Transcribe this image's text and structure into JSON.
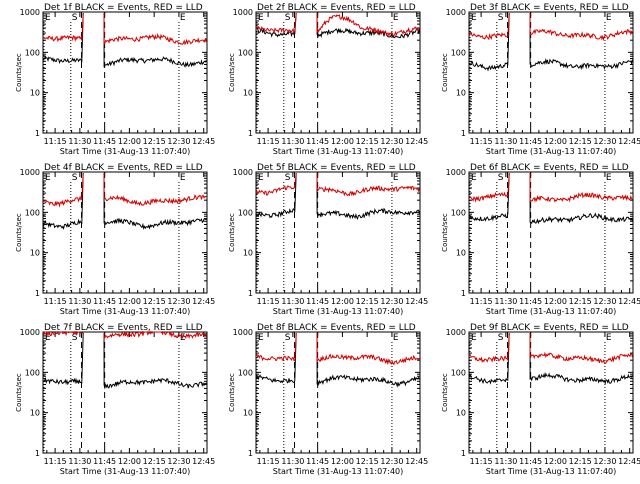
{
  "colors": {
    "background": "#ffffff",
    "axis": "#000000",
    "events": "#000000",
    "lld": "#d40000"
  },
  "chart_data": [
    {
      "title": "Det 1f BLACK = Events, RED = LLD",
      "type": "line",
      "xlabel": "Start Time (31-Aug-13 11:07:40)",
      "ylabel": "Counts/sec",
      "xticks": [
        "11:15",
        "11:30",
        "11:45",
        "12:00",
        "12:15",
        "12:30",
        "12:45"
      ],
      "yticks": [
        "1",
        "10",
        "100",
        "1000"
      ],
      "yscale": "log",
      "ylim": [
        1,
        1000
      ],
      "markers": [
        "E",
        "S",
        "E"
      ],
      "series": [
        {
          "name": "Events",
          "color": "#000000",
          "base": 60,
          "shape": "flat"
        },
        {
          "name": "LLD",
          "color": "#d40000",
          "base": 210,
          "shape": "flat"
        }
      ]
    },
    {
      "title": "Det 2f BLACK = Events, RED = LLD",
      "type": "line",
      "xlabel": "Start Time (31-Aug-13 11:07:40)",
      "ylabel": "Counts/sec",
      "xticks": [
        "11:15",
        "11:30",
        "11:45",
        "12:00",
        "12:15",
        "12:30",
        "12:45"
      ],
      "yticks": [
        "1",
        "10",
        "100",
        "1000"
      ],
      "yscale": "log",
      "ylim": [
        1,
        1000
      ],
      "markers": [
        "E",
        "S",
        "E"
      ],
      "series": [
        {
          "name": "Events",
          "color": "#000000",
          "base": 300,
          "shape": "flat"
        },
        {
          "name": "LLD",
          "color": "#d40000",
          "base": 360,
          "shape": "hump"
        }
      ]
    },
    {
      "title": "Det 3f BLACK = Events, RED = LLD",
      "type": "line",
      "xlabel": "Start Time (31-Aug-13 11:07:40)",
      "ylabel": "Counts/sec",
      "xticks": [
        "11:15",
        "11:30",
        "11:45",
        "12:00",
        "12:15",
        "12:30",
        "12:45"
      ],
      "yticks": [
        "1",
        "10",
        "100",
        "1000"
      ],
      "yscale": "log",
      "ylim": [
        1,
        1000
      ],
      "markers": [
        "E",
        "S",
        "E"
      ],
      "series": [
        {
          "name": "Events",
          "color": "#000000",
          "base": 50,
          "shape": "flat"
        },
        {
          "name": "LLD",
          "color": "#d40000",
          "base": 280,
          "shape": "flat"
        }
      ]
    },
    {
      "title": "Det 4f BLACK = Events, RED = LLD",
      "type": "line",
      "xlabel": "Start Time (31-Aug-13 11:07:40)",
      "ylabel": "Counts/sec",
      "xticks": [
        "11:15",
        "11:30",
        "11:45",
        "12:00",
        "12:15",
        "12:30",
        "12:45"
      ],
      "yticks": [
        "1",
        "10",
        "100",
        "1000"
      ],
      "yscale": "log",
      "ylim": [
        1,
        1000
      ],
      "markers": [
        "E",
        "S",
        "E"
      ],
      "series": [
        {
          "name": "Events",
          "color": "#000000",
          "base": 55,
          "shape": "flat"
        },
        {
          "name": "LLD",
          "color": "#d40000",
          "base": 200,
          "shape": "flat"
        }
      ]
    },
    {
      "title": "Det 5f BLACK = Events, RED = LLD",
      "type": "line",
      "xlabel": "Start Time (31-Aug-13 11:07:40)",
      "ylabel": "Counts/sec",
      "xticks": [
        "11:15",
        "11:30",
        "11:45",
        "12:00",
        "12:15",
        "12:30",
        "12:45"
      ],
      "yticks": [
        "1",
        "10",
        "100",
        "1000"
      ],
      "yscale": "log",
      "ylim": [
        1,
        1000
      ],
      "markers": [
        "E",
        "S",
        "E"
      ],
      "series": [
        {
          "name": "Events",
          "color": "#000000",
          "base": 95,
          "shape": "flat"
        },
        {
          "name": "LLD",
          "color": "#d40000",
          "base": 360,
          "shape": "flat"
        }
      ]
    },
    {
      "title": "Det 6f BLACK = Events, RED = LLD",
      "type": "line",
      "xlabel": "Start Time (31-Aug-13 11:07:40)",
      "ylabel": "Counts/sec",
      "xticks": [
        "11:15",
        "11:30",
        "11:45",
        "12:00",
        "12:15",
        "12:30",
        "12:45"
      ],
      "yticks": [
        "1",
        "10",
        "100",
        "1000"
      ],
      "yscale": "log",
      "ylim": [
        1,
        1000
      ],
      "markers": [
        "E",
        "S",
        "E"
      ],
      "series": [
        {
          "name": "Events",
          "color": "#000000",
          "base": 70,
          "shape": "flat"
        },
        {
          "name": "LLD",
          "color": "#d40000",
          "base": 230,
          "shape": "flat"
        }
      ]
    },
    {
      "title": "Det 7f BLACK = Events, RED = LLD",
      "type": "line",
      "xlabel": "Start Time (31-Aug-13 11:07:40)",
      "ylabel": "Counts/sec",
      "xticks": [
        "11:15",
        "11:30",
        "11:45",
        "12:00",
        "12:15",
        "12:30",
        "12:45"
      ],
      "yticks": [
        "1",
        "10",
        "100",
        "1000"
      ],
      "yscale": "log",
      "ylim": [
        1,
        1000
      ],
      "markers": [
        "E",
        "S",
        "E"
      ],
      "series": [
        {
          "name": "Events",
          "color": "#000000",
          "base": 55,
          "shape": "flat"
        },
        {
          "name": "LLD",
          "color": "#d40000",
          "base": 880,
          "shape": "flat"
        }
      ]
    },
    {
      "title": "Det 8f BLACK = Events, RED = LLD",
      "type": "line",
      "xlabel": "Start Time (31-Aug-13 11:07:40)",
      "ylabel": "Counts/sec",
      "xticks": [
        "11:15",
        "11:30",
        "11:45",
        "12:00",
        "12:15",
        "12:30",
        "12:45"
      ],
      "yticks": [
        "1",
        "10",
        "100",
        "1000"
      ],
      "yscale": "log",
      "ylim": [
        1,
        1000
      ],
      "markers": [
        "E",
        "S",
        "E"
      ],
      "series": [
        {
          "name": "Events",
          "color": "#000000",
          "base": 65,
          "shape": "flat"
        },
        {
          "name": "LLD",
          "color": "#d40000",
          "base": 220,
          "shape": "flat"
        }
      ]
    },
    {
      "title": "Det 9f BLACK = Events, RED = LLD",
      "type": "line",
      "xlabel": "Start Time (31-Aug-13 11:07:40)",
      "ylabel": "Counts/sec",
      "xticks": [
        "11:15",
        "11:30",
        "11:45",
        "12:00",
        "12:15",
        "12:30",
        "12:45"
      ],
      "yticks": [
        "1",
        "10",
        "100",
        "1000"
      ],
      "yscale": "log",
      "ylim": [
        1,
        1000
      ],
      "markers": [
        "E",
        "S",
        "E"
      ],
      "series": [
        {
          "name": "Events",
          "color": "#000000",
          "base": 70,
          "shape": "flat"
        },
        {
          "name": "LLD",
          "color": "#d40000",
          "base": 230,
          "shape": "flat"
        }
      ]
    }
  ]
}
